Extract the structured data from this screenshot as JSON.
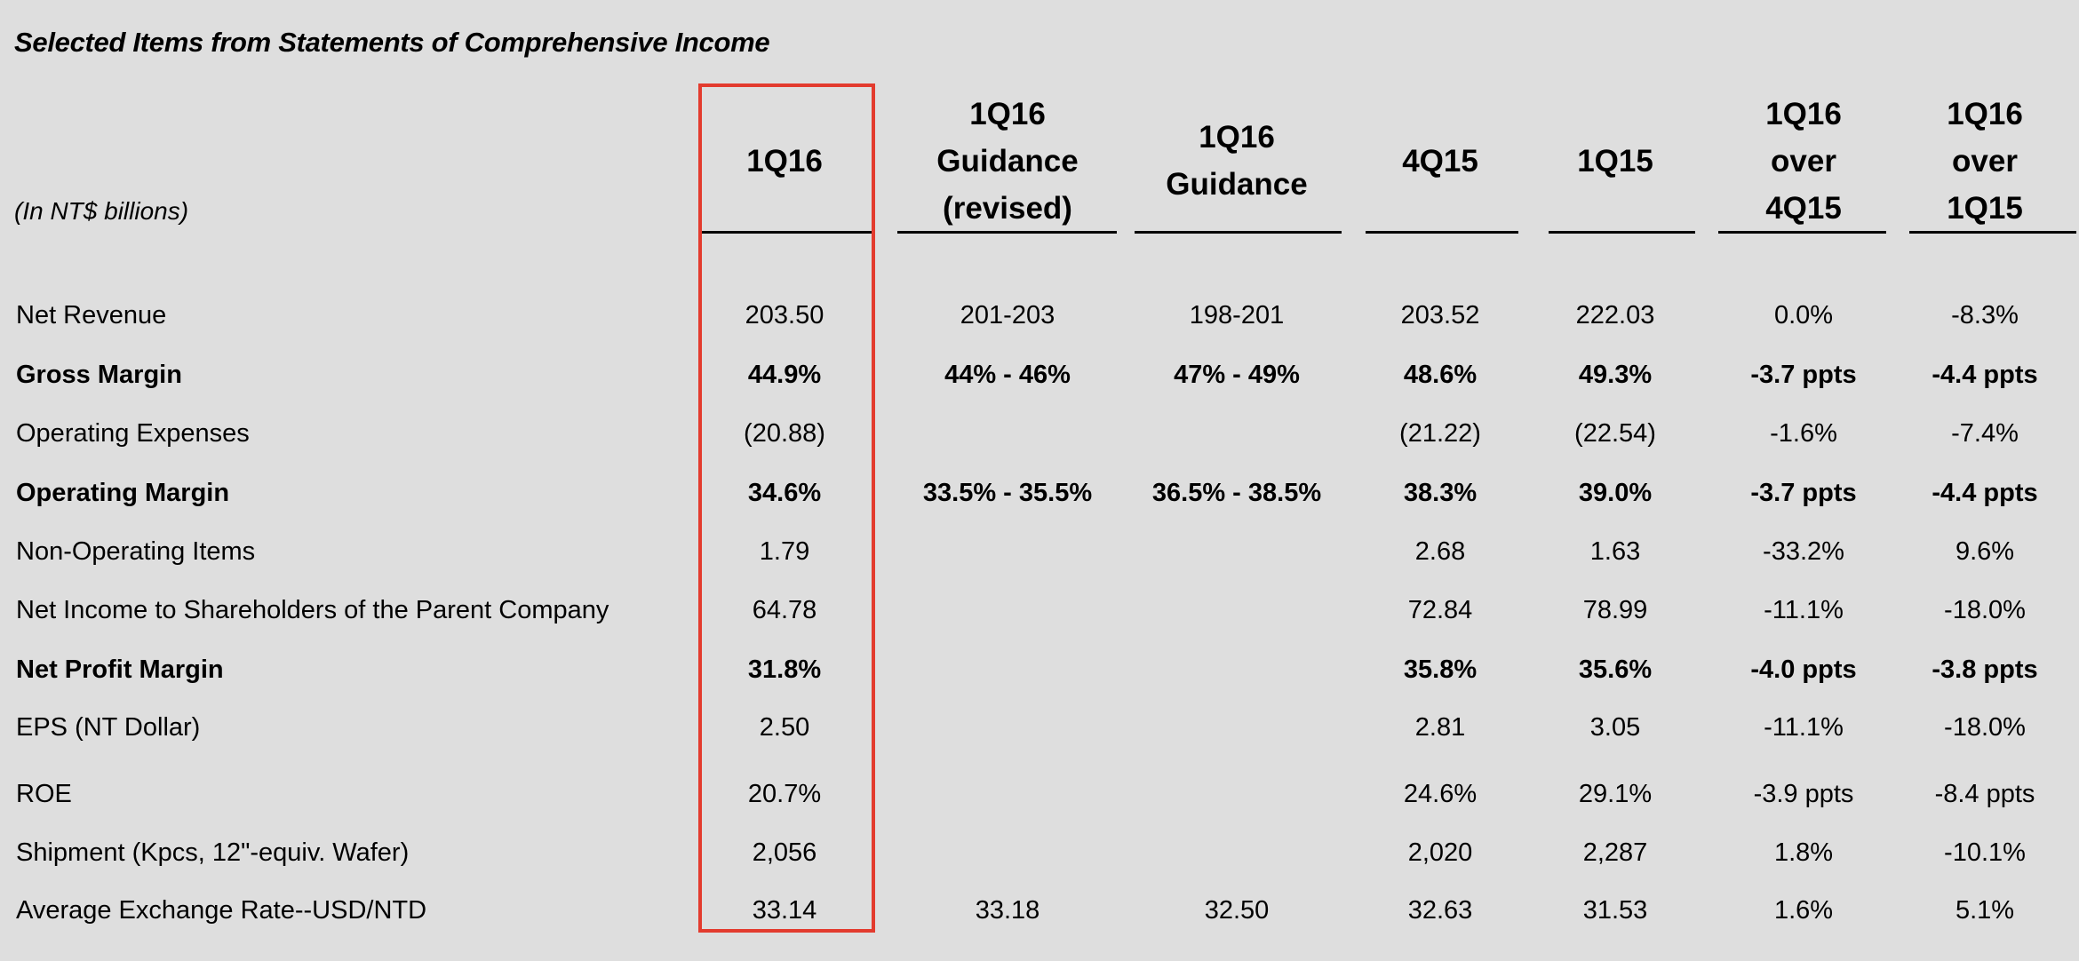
{
  "title": "Selected Items from Statements of Comprehensive Income",
  "units": "(In NT$ billions)",
  "highlight_color": "#e33b2e",
  "columns": [
    {
      "lines": [
        "1Q16"
      ]
    },
    {
      "lines": [
        "1Q16",
        "Guidance",
        "(revised)"
      ]
    },
    {
      "lines": [
        "1Q16",
        "Guidance"
      ]
    },
    {
      "lines": [
        "4Q15"
      ]
    },
    {
      "lines": [
        "1Q15"
      ]
    },
    {
      "lines": [
        "1Q16",
        "over",
        "4Q15"
      ]
    },
    {
      "lines": [
        "1Q16",
        "over",
        "1Q15"
      ]
    }
  ],
  "rows": [
    {
      "label": "Net Revenue",
      "bold": false,
      "values": [
        "203.50",
        "201-203",
        "198-201",
        "203.52",
        "222.03",
        "0.0%",
        "-8.3%"
      ]
    },
    {
      "label": "Gross Margin",
      "bold": true,
      "values": [
        "44.9%",
        "44% - 46%",
        "47% - 49%",
        "48.6%",
        "49.3%",
        "-3.7 ppts",
        "-4.4 ppts"
      ]
    },
    {
      "label": "Operating Expenses",
      "bold": false,
      "values": [
        "(20.88)",
        "",
        "",
        "(21.22)",
        "(22.54)",
        "-1.6%",
        "-7.4%"
      ]
    },
    {
      "label": "Operating Margin",
      "bold": true,
      "values": [
        "34.6%",
        "33.5% - 35.5%",
        "36.5% - 38.5%",
        "38.3%",
        "39.0%",
        "-3.7 ppts",
        "-4.4 ppts"
      ]
    },
    {
      "label": "Non-Operating Items",
      "bold": false,
      "values": [
        "1.79",
        "",
        "",
        "2.68",
        "1.63",
        "-33.2%",
        "9.6%"
      ]
    },
    {
      "label": "Net Income to Shareholders of the Parent Company",
      "bold": false,
      "values": [
        "64.78",
        "",
        "",
        "72.84",
        "78.99",
        "-11.1%",
        "-18.0%"
      ]
    },
    {
      "label": "Net Profit Margin",
      "bold": true,
      "values": [
        "31.8%",
        "",
        "",
        "35.8%",
        "35.6%",
        "-4.0 ppts",
        "-3.8 ppts"
      ]
    },
    {
      "label": "EPS (NT Dollar)",
      "bold": false,
      "values": [
        "2.50",
        "",
        "",
        "2.81",
        "3.05",
        "-11.1%",
        "-18.0%"
      ]
    },
    {
      "label": "ROE",
      "bold": false,
      "values": [
        "20.7%",
        "",
        "",
        "24.6%",
        "29.1%",
        "-3.9 ppts",
        "-8.4 ppts"
      ]
    },
    {
      "label": "Shipment (Kpcs, 12\"-equiv. Wafer)",
      "bold": false,
      "values": [
        "2,056",
        "",
        "",
        "2,020",
        "2,287",
        "1.8%",
        "-10.1%"
      ]
    },
    {
      "label": "Average Exchange Rate--USD/NTD",
      "bold": false,
      "values": [
        "33.14",
        "33.18",
        "32.50",
        "32.63",
        "31.53",
        "1.6%",
        "5.1%"
      ]
    }
  ]
}
